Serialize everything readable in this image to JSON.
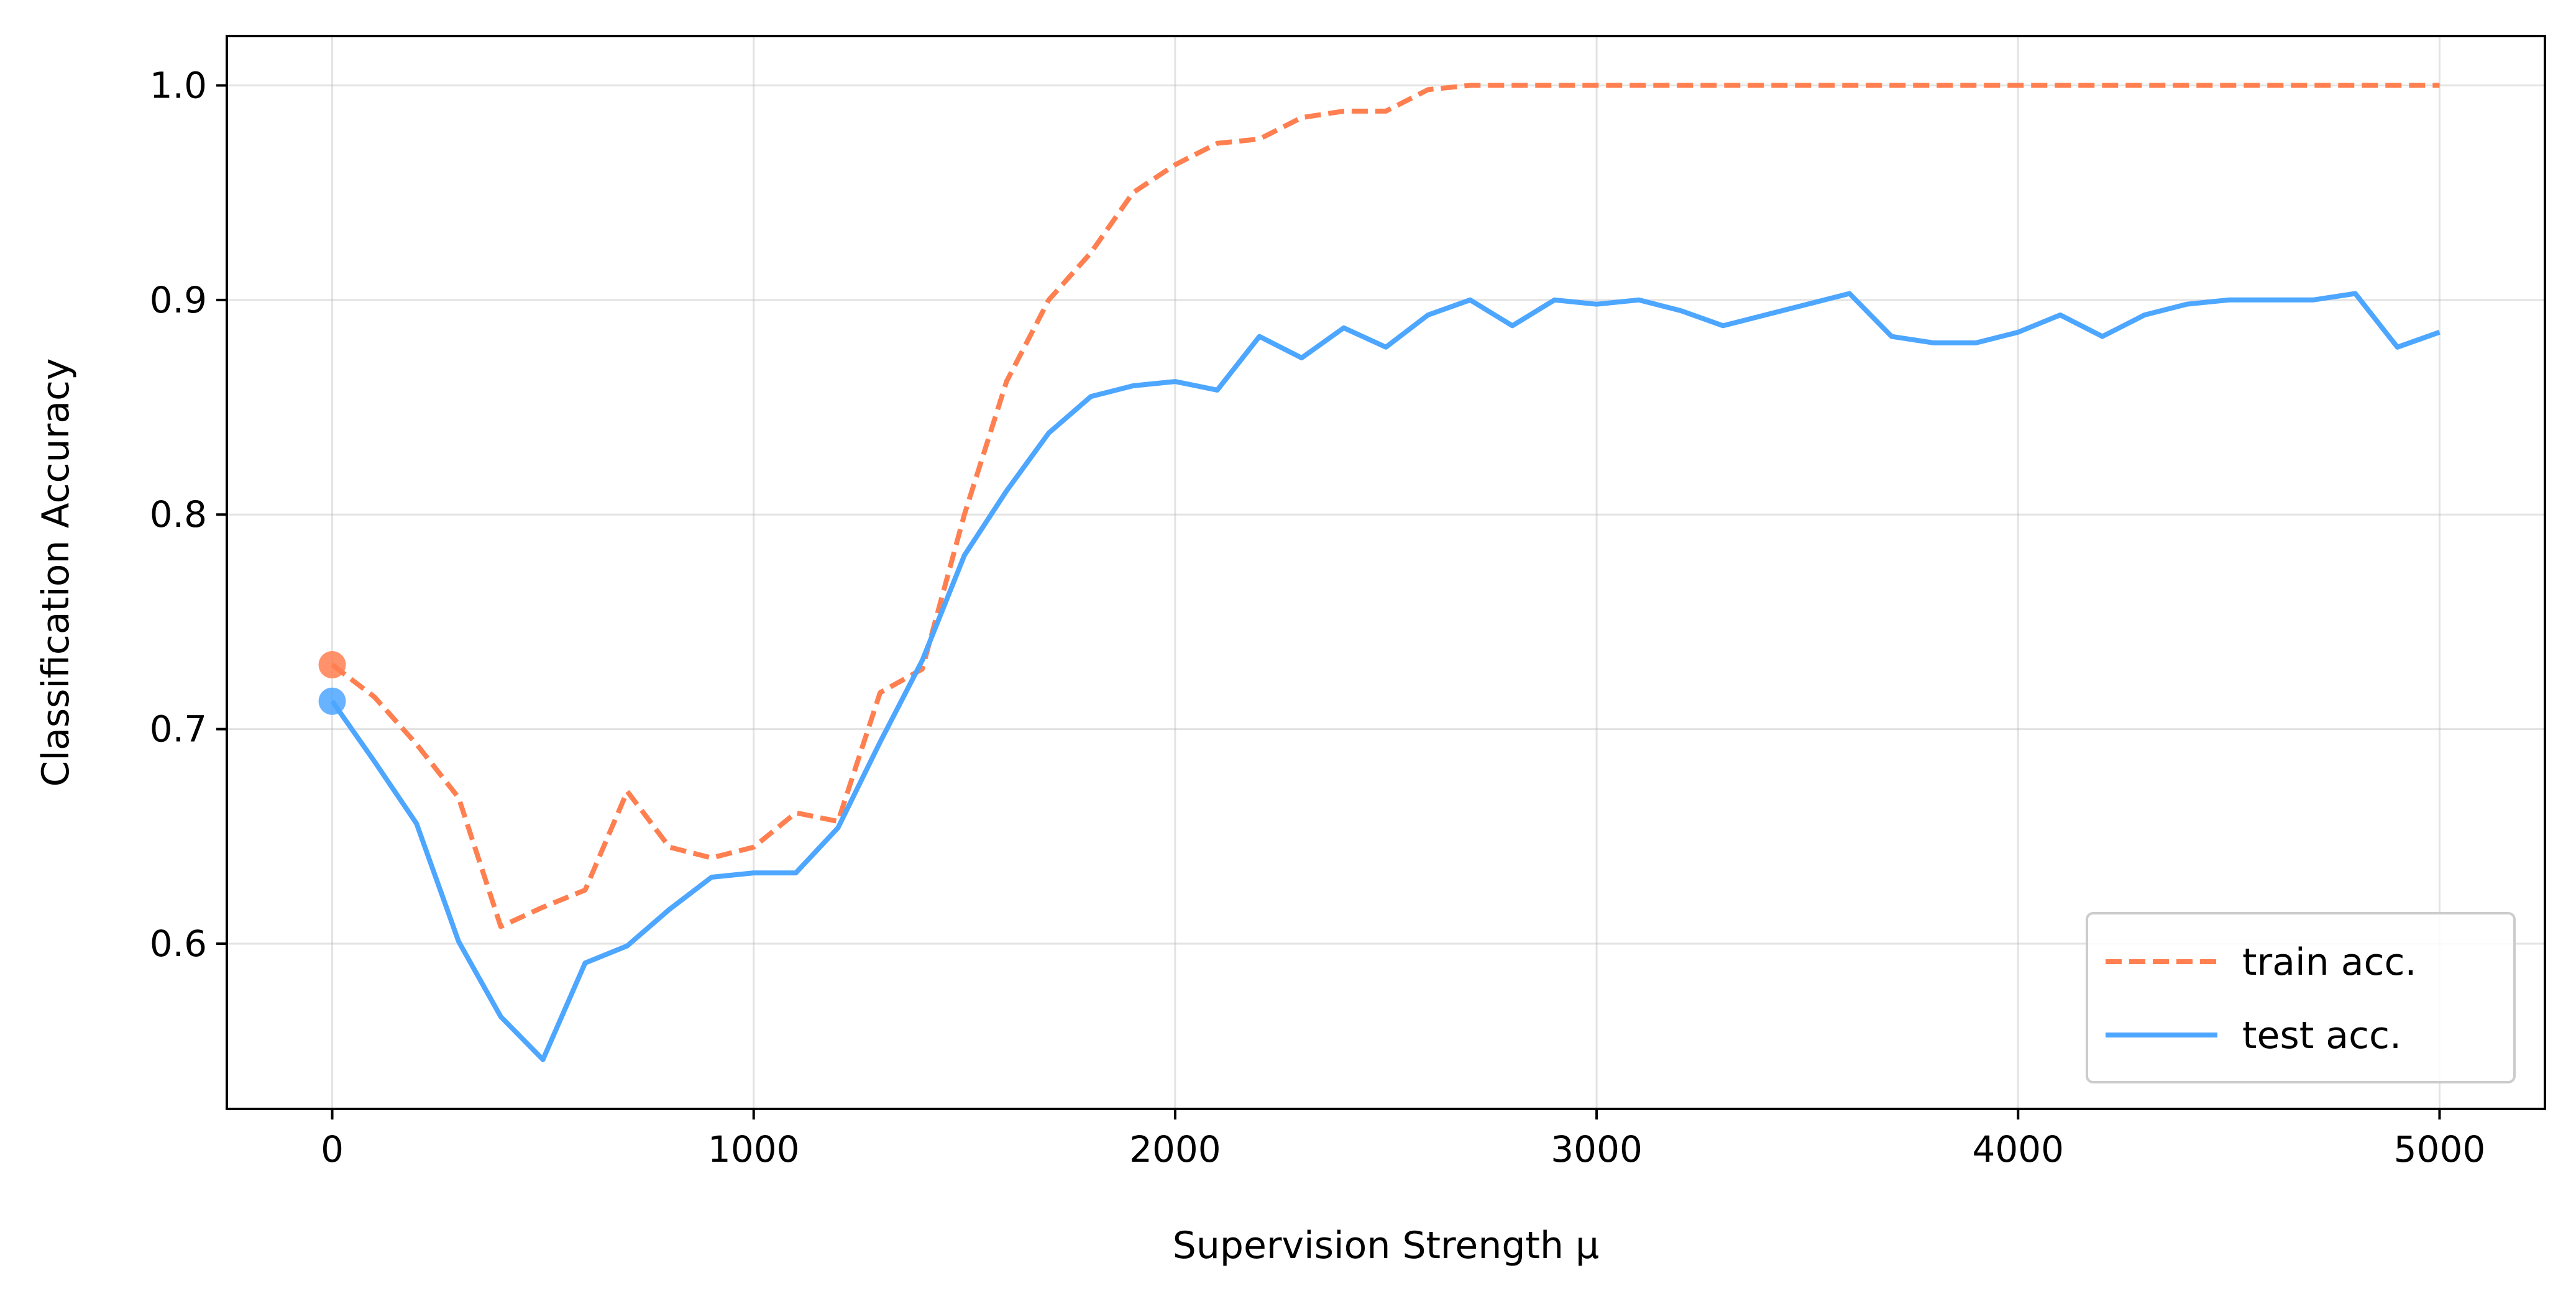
{
  "chart_data": {
    "type": "line",
    "xlabel": "Supervision Strength μ",
    "ylabel": "Classification Accuracy",
    "xlim": [
      -250,
      5250
    ],
    "ylim": [
      0.523,
      1.023
    ],
    "xticks": [
      0,
      1000,
      2000,
      3000,
      4000,
      5000
    ],
    "xtick_labels": [
      "0",
      "1000",
      "2000",
      "3000",
      "4000",
      "5000"
    ],
    "yticks": [
      0.6,
      0.7,
      0.8,
      0.9,
      1.0
    ],
    "ytick_labels": [
      "0.6",
      "0.7",
      "0.8",
      "0.9",
      "1.0"
    ],
    "grid": true,
    "legend_position": "bottom-right",
    "series": [
      {
        "name": "train acc.",
        "color": "#FF7F50",
        "style": "dashed",
        "x": [
          0,
          100,
          200,
          300,
          400,
          500,
          600,
          700,
          800,
          900,
          1000,
          1100,
          1200,
          1300,
          1400,
          1500,
          1600,
          1700,
          1800,
          1900,
          2000,
          2100,
          2200,
          2300,
          2400,
          2500,
          2600,
          2700,
          2800,
          2900,
          3000,
          3100,
          3200,
          3300,
          3400,
          3500,
          3600,
          3700,
          3800,
          3900,
          4000,
          4100,
          4200,
          4300,
          4400,
          4500,
          4600,
          4700,
          4800,
          4900,
          5000
        ],
        "y": [
          0.73,
          0.715,
          0.693,
          0.668,
          0.608,
          0.617,
          0.625,
          0.671,
          0.645,
          0.64,
          0.645,
          0.661,
          0.657,
          0.717,
          0.728,
          0.8,
          0.862,
          0.9,
          0.922,
          0.95,
          0.963,
          0.973,
          0.975,
          0.985,
          0.988,
          0.988,
          0.998,
          1.0,
          1.0,
          1.0,
          1.0,
          1.0,
          1.0,
          1.0,
          1.0,
          1.0,
          1.0,
          1.0,
          1.0,
          1.0,
          1.0,
          1.0,
          1.0,
          1.0,
          1.0,
          1.0,
          1.0,
          1.0,
          1.0,
          1.0,
          1.0
        ],
        "start_marker": {
          "x": 0,
          "y": 0.73
        }
      },
      {
        "name": "test acc.",
        "color": "#4DA6FF",
        "style": "solid",
        "x": [
          0,
          100,
          200,
          300,
          400,
          500,
          600,
          700,
          800,
          900,
          1000,
          1100,
          1200,
          1300,
          1400,
          1500,
          1600,
          1700,
          1800,
          1900,
          2000,
          2100,
          2200,
          2300,
          2400,
          2500,
          2600,
          2700,
          2800,
          2900,
          3000,
          3100,
          3200,
          3300,
          3400,
          3500,
          3600,
          3700,
          3800,
          3900,
          4000,
          4100,
          4200,
          4300,
          4400,
          4500,
          4600,
          4700,
          4800,
          4900,
          5000
        ],
        "y": [
          0.713,
          0.685,
          0.656,
          0.601,
          0.566,
          0.546,
          0.591,
          0.599,
          0.616,
          0.631,
          0.633,
          0.633,
          0.654,
          0.694,
          0.732,
          0.781,
          0.811,
          0.838,
          0.855,
          0.86,
          0.862,
          0.858,
          0.883,
          0.873,
          0.887,
          0.878,
          0.893,
          0.9,
          0.888,
          0.9,
          0.898,
          0.9,
          0.895,
          0.888,
          0.893,
          0.898,
          0.903,
          0.883,
          0.88,
          0.88,
          0.885,
          0.893,
          0.883,
          0.893,
          0.898,
          0.9,
          0.9,
          0.9,
          0.903,
          0.878,
          0.885
        ],
        "start_marker": {
          "x": 0,
          "y": 0.713
        }
      }
    ]
  }
}
